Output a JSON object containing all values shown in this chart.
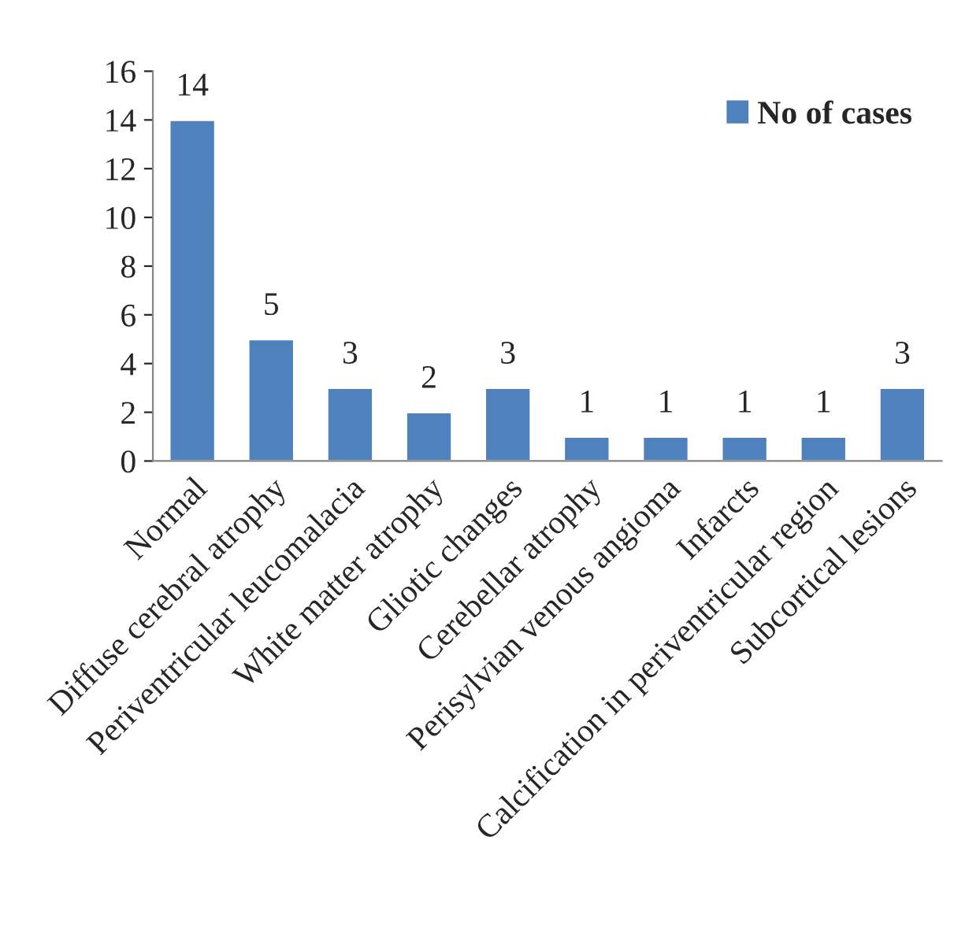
{
  "chart_data": {
    "type": "bar",
    "categories": [
      "Normal",
      "Diffuse cerebral atrophy",
      "Periventricular leucomalacia",
      "White matter atrophy",
      "Gliotic changes",
      "Cerebellar atrophy",
      "Perisylvian venous angioma",
      "Infarcts",
      "Calcification in periventricular region",
      "Subcortical lesions"
    ],
    "series": [
      {
        "name": "No of cases",
        "color": "#4f81bd",
        "values": [
          14,
          5,
          3,
          2,
          3,
          1,
          1,
          1,
          1,
          3
        ]
      }
    ],
    "ylim": [
      0,
      16
    ],
    "yticks": [
      0,
      2,
      4,
      6,
      8,
      10,
      12,
      14,
      16
    ],
    "data_labels": true,
    "legend": "top right",
    "grid": false
  }
}
